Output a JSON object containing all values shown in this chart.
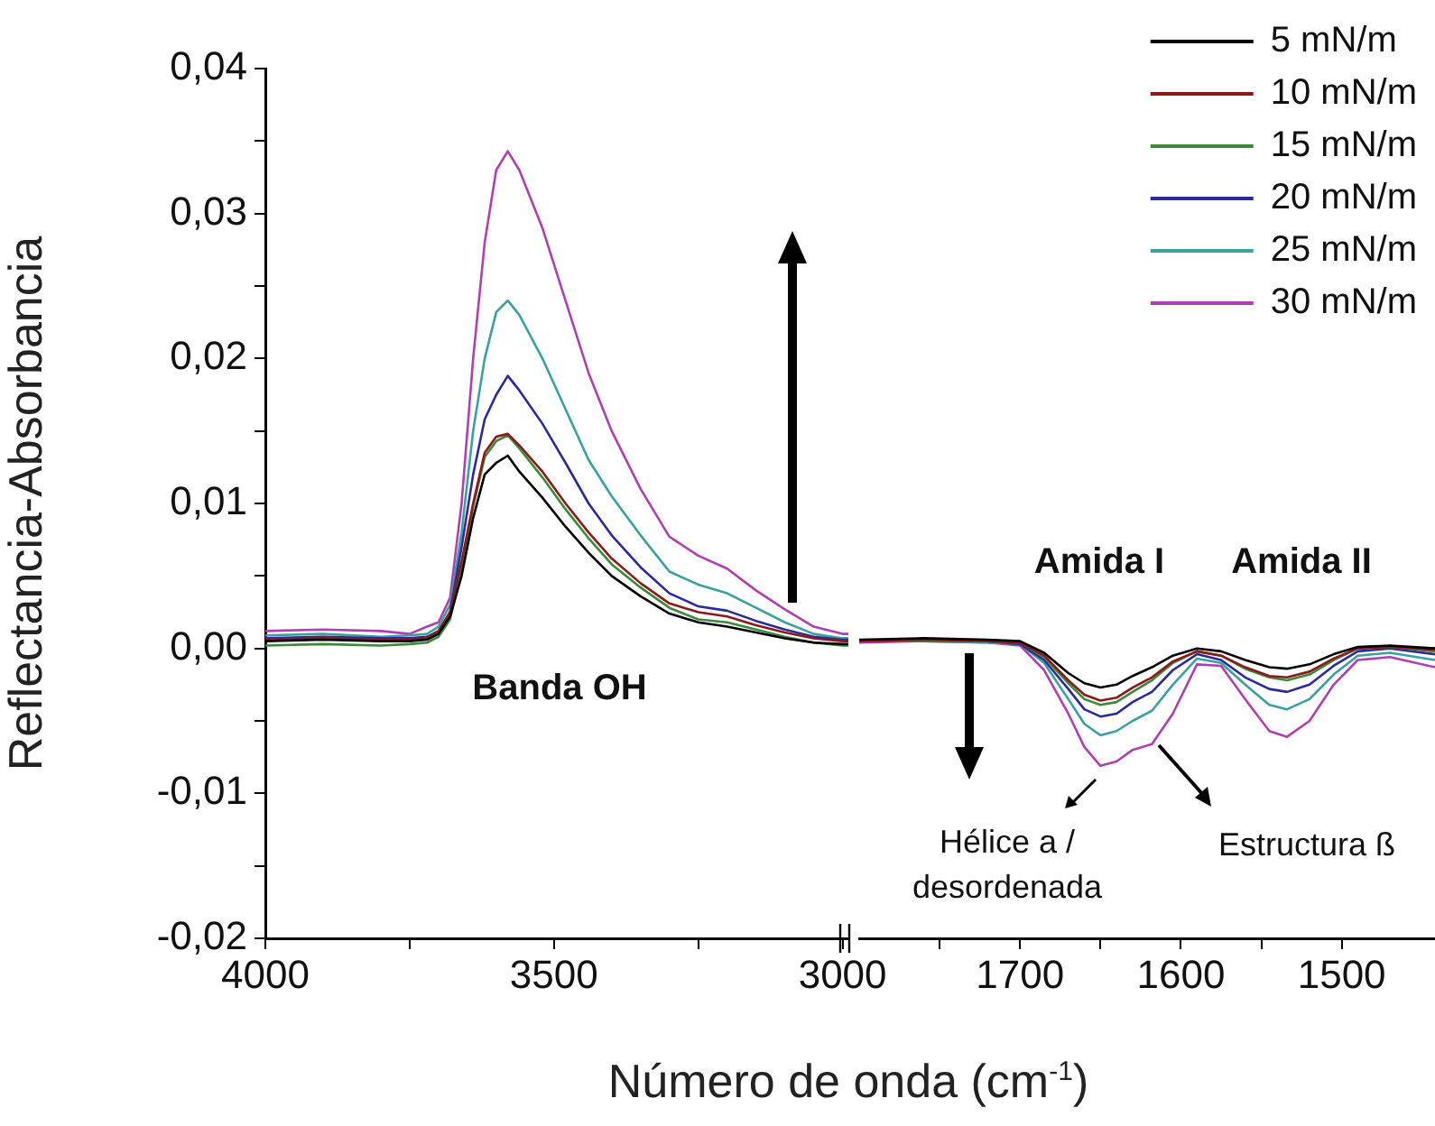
{
  "chart_data": [
    {
      "type": "line",
      "ylabel": "Reflectancia-Absorbancia",
      "xlabel": "Número de onda (cm$^{-1}$)",
      "legend": false,
      "marker": "none",
      "line_style": "solid",
      "xlim": [
        4000,
        2990
      ],
      "xticks": [
        4000,
        {
          "value": 3750,
          "label": null
        },
        3500,
        {
          "value": 3250,
          "label": null
        },
        3000
      ],
      "ylim": [
        -0.02,
        0.04
      ],
      "yticks": [
        {
          "value": -0.02,
          "label": "-0,02"
        },
        {
          "value": -0.015,
          "label": null
        },
        {
          "value": -0.01,
          "label": "-0,01"
        },
        {
          "value": -0.005,
          "label": null
        },
        {
          "value": 0,
          "label": "0,00"
        },
        {
          "value": 0.005,
          "label": null
        },
        {
          "value": 0.01,
          "label": "0,01"
        },
        {
          "value": 0.015,
          "label": null
        },
        {
          "value": 0.02,
          "label": "0,02"
        },
        {
          "value": 0.025,
          "label": null
        },
        {
          "value": 0.03,
          "label": "0,03"
        },
        {
          "value": 0.035,
          "label": null
        },
        {
          "value": 0.04,
          "label": "0,04"
        }
      ],
      "x": [
        4000,
        3900,
        3800,
        3750,
        3720,
        3700,
        3680,
        3660,
        3640,
        3620,
        3600,
        3580,
        3560,
        3520,
        3480,
        3440,
        3400,
        3350,
        3300,
        3250,
        3200,
        3150,
        3100,
        3050,
        3000,
        2990
      ],
      "annotations": [
        "Banda OH"
      ],
      "series": [
        {
          "color": "#000000",
          "values": [
            0.0005,
            0.0006,
            0.0005,
            0.0005,
            0.0006,
            0.001,
            0.0022,
            0.005,
            0.009,
            0.012,
            0.0128,
            0.0133,
            0.0122,
            0.0104,
            0.0084,
            0.0066,
            0.005,
            0.0036,
            0.0024,
            0.0018,
            0.0015,
            0.0011,
            0.0007,
            0.0004,
            0.0003,
            0.0003
          ]
        },
        {
          "color": "#8b1a1a",
          "values": [
            0.0006,
            0.0007,
            0.0006,
            0.0006,
            0.0007,
            0.0012,
            0.0025,
            0.006,
            0.01,
            0.0135,
            0.0146,
            0.0148,
            0.014,
            0.0122,
            0.01,
            0.008,
            0.0062,
            0.0045,
            0.0031,
            0.0025,
            0.0022,
            0.0016,
            0.0011,
            0.0007,
            0.0005,
            0.0005
          ]
        },
        {
          "color": "#3a8a3a",
          "values": [
            0.0002,
            0.0003,
            0.0002,
            0.0003,
            0.0004,
            0.0008,
            0.002,
            0.0055,
            0.0098,
            0.0132,
            0.0143,
            0.0147,
            0.0138,
            0.0118,
            0.0096,
            0.0076,
            0.0058,
            0.0042,
            0.0028,
            0.002,
            0.0018,
            0.0013,
            0.0008,
            0.0004,
            0.0002,
            0.0002
          ]
        },
        {
          "color": "#2a2a9a",
          "values": [
            0.0007,
            0.0008,
            0.0007,
            0.0007,
            0.0008,
            0.0012,
            0.0025,
            0.007,
            0.012,
            0.0158,
            0.0175,
            0.0188,
            0.0178,
            0.0155,
            0.0128,
            0.01,
            0.0078,
            0.0056,
            0.0038,
            0.0029,
            0.0026,
            0.0019,
            0.0013,
            0.0008,
            0.0006,
            0.0006
          ]
        },
        {
          "color": "#3aa0a0",
          "values": [
            0.0009,
            0.001,
            0.0008,
            0.0009,
            0.001,
            0.0015,
            0.003,
            0.008,
            0.015,
            0.02,
            0.0232,
            0.024,
            0.023,
            0.02,
            0.0165,
            0.013,
            0.0105,
            0.0078,
            0.0053,
            0.0044,
            0.0038,
            0.0028,
            0.0018,
            0.001,
            0.0007,
            0.0007
          ]
        },
        {
          "color": "#b040b0",
          "values": [
            0.0012,
            0.0013,
            0.0012,
            0.001,
            0.0015,
            0.0018,
            0.0035,
            0.01,
            0.02,
            0.028,
            0.033,
            0.0343,
            0.033,
            0.029,
            0.024,
            0.019,
            0.015,
            0.011,
            0.0077,
            0.0064,
            0.0055,
            0.004,
            0.0027,
            0.0015,
            0.001,
            0.001
          ]
        }
      ]
    },
    {
      "type": "line",
      "legend": "top right",
      "marker": "none",
      "line_style": "solid",
      "tick_labels": "x",
      "xlim": [
        1800,
        1442
      ],
      "xticks": [
        {
          "value": 1750,
          "label": null
        },
        1700,
        {
          "value": 1650,
          "label": null
        },
        1600,
        {
          "value": 1550,
          "label": null
        },
        1500
      ],
      "ylim": [
        -0.02,
        0.04
      ],
      "x": [
        1800,
        1760,
        1720,
        1700,
        1685,
        1670,
        1660,
        1650,
        1640,
        1630,
        1618,
        1605,
        1590,
        1575,
        1560,
        1545,
        1534,
        1520,
        1505,
        1490,
        1470,
        1442
      ],
      "annotations": [
        "Amida I",
        "Amida II",
        "Hélice a /\ndesordenada",
        "Estructura ß"
      ],
      "series": [
        {
          "name": "5 mN/m",
          "color": "#000000",
          "values": [
            0.0006,
            0.0007,
            0.0006,
            0.0005,
            -0.0003,
            -0.0017,
            -0.0024,
            -0.0027,
            -0.0025,
            -0.0019,
            -0.0013,
            -0.0005,
            0.0,
            -0.0002,
            -0.0008,
            -0.0013,
            -0.0014,
            -0.0011,
            -0.0004,
            0.0001,
            0.0002,
            0.0
          ]
        },
        {
          "name": "10 mN/m",
          "color": "#8b1a1a",
          "values": [
            0.0005,
            0.0006,
            0.0005,
            0.0004,
            -0.0005,
            -0.0022,
            -0.0032,
            -0.0036,
            -0.0034,
            -0.0027,
            -0.002,
            -0.0009,
            -0.0002,
            -0.0005,
            -0.0013,
            -0.0019,
            -0.002,
            -0.0016,
            -0.0007,
            0.0,
            0.0001,
            -0.0001
          ]
        },
        {
          "name": "15 mN/m",
          "color": "#3a8a3a",
          "values": [
            0.0005,
            0.0005,
            0.0005,
            0.0004,
            -0.0006,
            -0.0024,
            -0.0035,
            -0.0039,
            -0.0037,
            -0.003,
            -0.0022,
            -0.001,
            -0.0002,
            -0.0005,
            -0.0014,
            -0.002,
            -0.0022,
            -0.0018,
            -0.0008,
            0.0,
            0.0001,
            -0.0002
          ]
        },
        {
          "name": "20 mN/m",
          "color": "#2a2a9a",
          "values": [
            0.0005,
            0.0005,
            0.0005,
            0.0003,
            -0.0008,
            -0.0028,
            -0.0042,
            -0.0047,
            -0.0045,
            -0.0037,
            -0.003,
            -0.0015,
            -0.0004,
            -0.0008,
            -0.002,
            -0.0028,
            -0.003,
            -0.0025,
            -0.0012,
            -0.0002,
            0.0,
            -0.0004
          ]
        },
        {
          "name": "25 mN/m",
          "color": "#3aa0a0",
          "values": [
            0.0005,
            0.0005,
            0.0004,
            0.0003,
            -0.001,
            -0.0035,
            -0.0052,
            -0.006,
            -0.0057,
            -0.005,
            -0.0043,
            -0.0025,
            -0.0007,
            -0.001,
            -0.0025,
            -0.0039,
            -0.0042,
            -0.0035,
            -0.0018,
            -0.0005,
            -0.0003,
            -0.0008
          ]
        },
        {
          "name": "30 mN/m",
          "color": "#b040b0",
          "values": [
            0.0004,
            0.0005,
            0.0004,
            0.0002,
            -0.0015,
            -0.0045,
            -0.0068,
            -0.0081,
            -0.0078,
            -0.007,
            -0.0066,
            -0.0045,
            -0.0011,
            -0.0012,
            -0.0035,
            -0.0057,
            -0.0061,
            -0.005,
            -0.0025,
            -0.0008,
            -0.0006,
            -0.0013
          ]
        }
      ]
    }
  ]
}
